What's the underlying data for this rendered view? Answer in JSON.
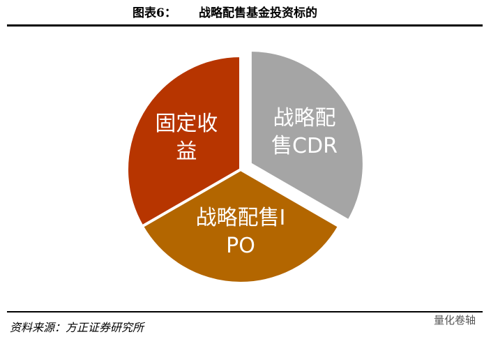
{
  "figure_label": "图表6：",
  "chart_data": {
    "type": "pie",
    "title": "战略配售基金投资标的",
    "categories": [
      "战略配售CDR",
      "战略配售IPO",
      "固定收益"
    ],
    "values": [
      33.3,
      33.3,
      33.3
    ],
    "colors": [
      "#a5a5a5",
      "#b36600",
      "#b73500"
    ],
    "exploded": [
      true,
      false,
      false
    ]
  },
  "source": "资料来源：方正证券研究所",
  "watermark": "量化卷轴"
}
